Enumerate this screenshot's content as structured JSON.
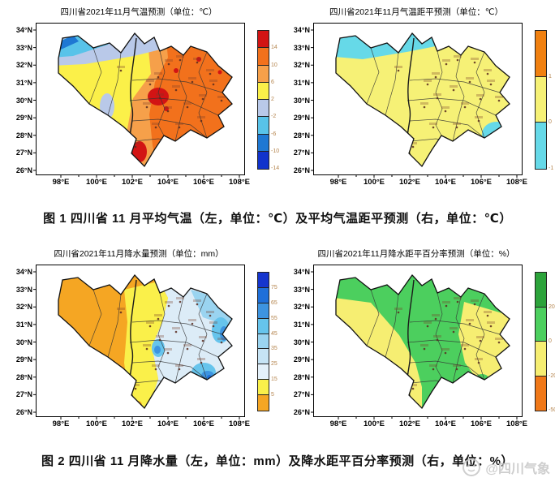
{
  "axes": {
    "x_ticks": [
      "98°E",
      "100°E",
      "102°E",
      "104°E",
      "106°E",
      "108°E"
    ],
    "y_ticks": [
      "34°N",
      "33°N",
      "32°N",
      "31°N",
      "30°N",
      "29°N",
      "28°N",
      "27°N",
      "26°N"
    ]
  },
  "panels": [
    {
      "id": "temperature-forecast",
      "title": "四川省2021年11月气温预测（单位：℃）",
      "colorbar": {
        "colors": [
          "#d21414",
          "#f2711c",
          "#f6a04a",
          "#fbf049",
          "#b9c9e9",
          "#58c3e9",
          "#1e78d3",
          "#1133cc"
        ],
        "labels": [
          "14",
          "10",
          "6",
          "2",
          "-2",
          "-6",
          "-10",
          "-14"
        ]
      }
    },
    {
      "id": "temperature-anomaly-forecast",
      "title": "四川省2021年11月气温距平预测（单位：℃）",
      "colorbar": {
        "colors": [
          "#f08010",
          "#f6f176",
          "#66d9e8"
        ],
        "labels": [
          "1",
          "0",
          "-1"
        ]
      }
    },
    {
      "id": "precipitation-forecast",
      "title": "四川省2021年11月降水量预测（单位：mm）",
      "colorbar": {
        "colors": [
          "#1535ce",
          "#1e6fd9",
          "#3d94e0",
          "#66c4ec",
          "#9ad4f0",
          "#c6e4f5",
          "#e4f1fa",
          "#faf04a",
          "#f5a623"
        ],
        "labels": [
          "75",
          "65",
          "55",
          "45",
          "35",
          "25",
          "15",
          "5"
        ]
      }
    },
    {
      "id": "precipitation-anomaly-forecast",
      "title": "四川省2021年11月降水距平百分率预测（单位：%）",
      "colorbar": {
        "colors": [
          "#2ca33a",
          "#4ccf5e",
          "#f6ee72",
          "#f07818"
        ],
        "labels": [
          "20",
          "0",
          "-20",
          "-50"
        ]
      }
    }
  ],
  "captions": {
    "figure1": "图 1 四川省 11 月平均气温（左，单位：℃）及平均气温距平预测（右，单位：℃）",
    "figure2": "图 2 四川省 11 月降水量（左，单位：mm）及降水距平百分率预测（右，单位：%）"
  },
  "watermark": {
    "text": "@四川气象"
  }
}
